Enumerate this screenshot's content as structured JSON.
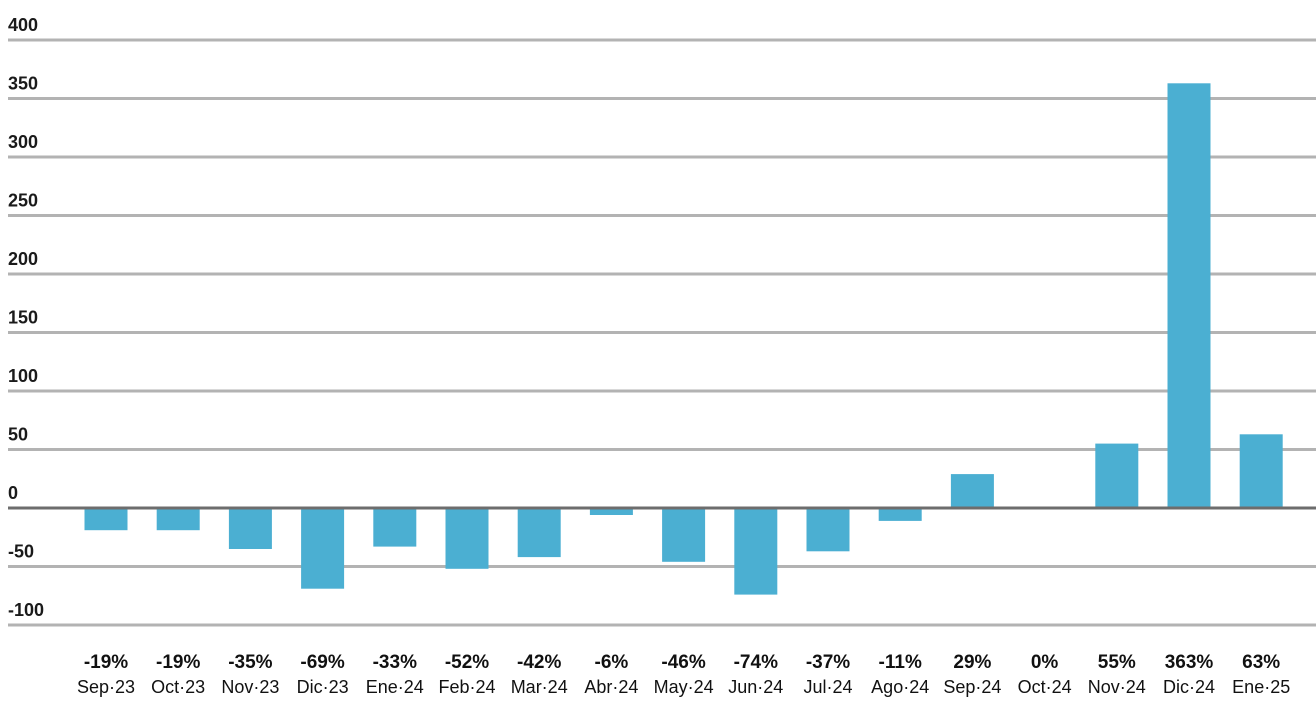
{
  "chart_data": {
    "type": "bar",
    "categories": [
      "Sep·23",
      "Oct·23",
      "Nov·23",
      "Dic·23",
      "Ene·24",
      "Feb·24",
      "Mar·24",
      "Abr·24",
      "May·24",
      "Jun·24",
      "Jul·24",
      "Ago·24",
      "Sep·24",
      "Oct·24",
      "Nov·24",
      "Dic·24",
      "Ene·25"
    ],
    "values": [
      -19,
      -19,
      -35,
      -69,
      -33,
      -52,
      -42,
      -6,
      -46,
      -74,
      -37,
      -11,
      29,
      0,
      55,
      363,
      63
    ],
    "data_labels": [
      "-19%",
      "-19%",
      "-35%",
      "-69%",
      "-33%",
      "-52%",
      "-42%",
      "-6%",
      "-46%",
      "-74%",
      "-37%",
      "-11%",
      "29%",
      "0%",
      "55%",
      "363%",
      "63%"
    ],
    "yticks": [
      400,
      350,
      300,
      250,
      200,
      150,
      100,
      50,
      0,
      -50,
      -100
    ],
    "ylim": [
      -100,
      400
    ],
    "grid": true,
    "title": "",
    "xlabel": "",
    "ylabel": "",
    "colors": {
      "bar": "#4bafd2",
      "grid": "#b3b3b3",
      "zero_line": "#6d6d6d",
      "text": "#111111"
    }
  }
}
